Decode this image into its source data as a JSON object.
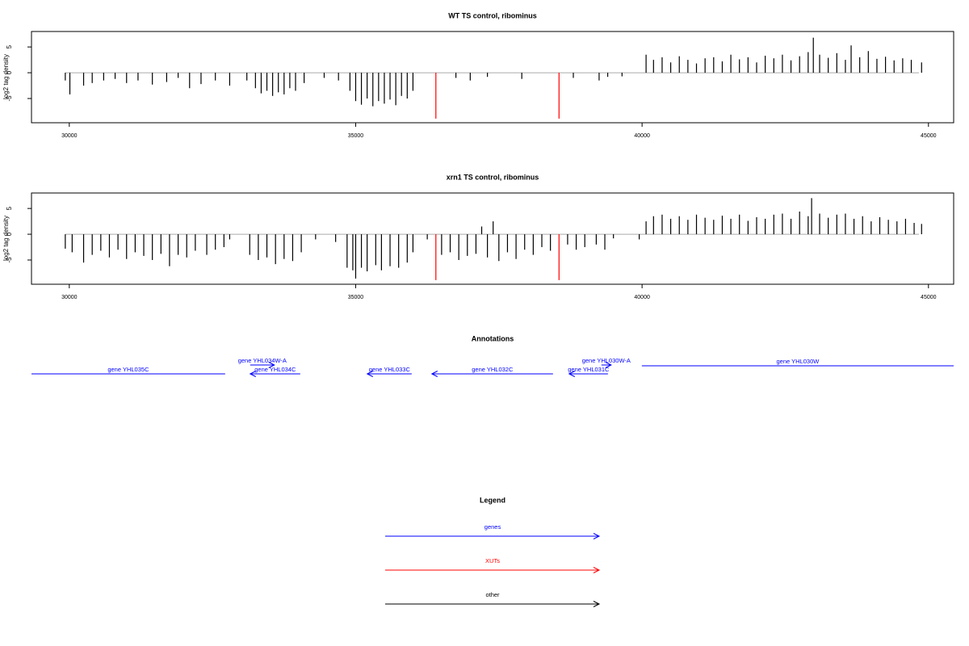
{
  "chart_data": [
    {
      "type": "bar",
      "title": "WT TS control, ribominus",
      "y_label": "log2 tag density",
      "xlim": [
        29340,
        45440
      ],
      "ylim": [
        -9.7,
        8
      ],
      "xticks": [
        30000,
        35000,
        40000,
        45000
      ],
      "yticks": [
        -5,
        0,
        5
      ],
      "series": [
        {
          "color": "#000000",
          "x": [
            29930,
            30010,
            30250,
            30400,
            30600,
            30800,
            31000,
            31200,
            31450,
            31700,
            31900,
            32100,
            32300,
            32550,
            32800,
            33100,
            33250,
            33350,
            33450,
            33550,
            33650,
            33750,
            33850,
            33950,
            34100,
            34450,
            34700,
            34900,
            35000,
            35100,
            35200,
            35300,
            35400,
            35500,
            35600,
            35700,
            35800,
            35900,
            36000,
            36750,
            37000,
            37300,
            37900,
            38800,
            39250,
            39400,
            39650,
            40070,
            40200,
            40350,
            40500,
            40650,
            40800,
            40950,
            41100,
            41250,
            41400,
            41550,
            41700,
            41850,
            42000,
            42150,
            42300,
            42450,
            42600,
            42750,
            42900,
            42990,
            43100,
            43250,
            43400,
            43550,
            43650,
            43800,
            43950,
            44100,
            44250,
            44400,
            44550,
            44700,
            44880
          ],
          "values": [
            -1.5,
            -4.2,
            -2.5,
            -2.0,
            -1.5,
            -1.2,
            -2.0,
            -1.5,
            -2.3,
            -1.8,
            -1.0,
            -3.0,
            -2.2,
            -1.5,
            -2.5,
            -1.5,
            -3.0,
            -4.0,
            -3.5,
            -4.5,
            -3.8,
            -4.2,
            -3.0,
            -3.5,
            -2.0,
            -1.0,
            -1.5,
            -3.5,
            -5.5,
            -6.2,
            -5.0,
            -6.5,
            -5.5,
            -6.0,
            -5.2,
            -6.3,
            -4.5,
            -5.0,
            -3.5,
            -1.0,
            -1.5,
            -0.8,
            -1.2,
            -1.0,
            -1.5,
            -0.8,
            -0.7,
            3.5,
            2.5,
            3.0,
            2.0,
            3.2,
            2.5,
            1.8,
            2.8,
            3.0,
            2.2,
            3.5,
            2.6,
            3.0,
            2.0,
            3.3,
            2.8,
            3.5,
            2.4,
            3.2,
            4.0,
            6.8,
            3.5,
            2.9,
            3.8,
            2.5,
            5.3,
            3.0,
            4.2,
            2.7,
            3.1,
            2.4,
            2.8,
            2.5,
            2.0
          ]
        },
        {
          "color": "#ff0000",
          "x": [
            36400,
            38550
          ],
          "values": [
            -8.9,
            -8.9
          ]
        }
      ]
    },
    {
      "type": "bar",
      "title": "xrn1 TS control, ribominus",
      "y_label": "log2 tag density",
      "xlim": [
        29340,
        45440
      ],
      "ylim": [
        -9.7,
        8
      ],
      "xticks": [
        30000,
        35000,
        40000,
        45000
      ],
      "yticks": [
        -5,
        0,
        5
      ],
      "series": [
        {
          "color": "#000000",
          "x": [
            29930,
            30050,
            30250,
            30400,
            30550,
            30700,
            30850,
            31000,
            31150,
            31300,
            31450,
            31600,
            31750,
            31900,
            32050,
            32200,
            32400,
            32550,
            32700,
            32800,
            33150,
            33300,
            33450,
            33600,
            33750,
            33900,
            34050,
            34300,
            34650,
            34850,
            34950,
            35000,
            35100,
            35200,
            35350,
            35450,
            35600,
            35750,
            35900,
            36000,
            36250,
            36500,
            36650,
            36800,
            36950,
            37100,
            37200,
            37300,
            37400,
            37500,
            37650,
            37800,
            37950,
            38100,
            38250,
            38400,
            38700,
            38850,
            39000,
            39200,
            39350,
            39500,
            39950,
            40070,
            40200,
            40350,
            40500,
            40650,
            40800,
            40950,
            41100,
            41250,
            41400,
            41550,
            41700,
            41850,
            42000,
            42150,
            42300,
            42450,
            42600,
            42750,
            42900,
            42960,
            43100,
            43250,
            43400,
            43550,
            43700,
            43850,
            44000,
            44150,
            44300,
            44450,
            44600,
            44750,
            44880
          ],
          "values": [
            -2.8,
            -3.5,
            -5.5,
            -4.0,
            -3.2,
            -4.5,
            -3.0,
            -4.8,
            -3.5,
            -4.2,
            -5.0,
            -3.8,
            -6.2,
            -4.0,
            -4.5,
            -3.2,
            -4.0,
            -3.0,
            -2.5,
            -1.0,
            -4.0,
            -5.0,
            -4.5,
            -5.8,
            -4.8,
            -5.2,
            -3.5,
            -1.0,
            -1.5,
            -6.5,
            -7.0,
            -8.6,
            -6.5,
            -7.2,
            -6.0,
            -7.0,
            -6.2,
            -6.5,
            -5.5,
            -3.5,
            -1.0,
            -4.0,
            -3.5,
            -5.0,
            -4.2,
            -3.8,
            1.5,
            -4.5,
            2.5,
            -5.2,
            -3.5,
            -4.8,
            -3.0,
            -4.0,
            -2.5,
            -3.2,
            -2.0,
            -3.0,
            -2.5,
            -2.0,
            -3.0,
            -0.8,
            -1.0,
            2.5,
            3.5,
            3.8,
            3.0,
            3.5,
            2.8,
            3.8,
            3.2,
            2.8,
            3.6,
            3.0,
            3.8,
            2.6,
            3.3,
            3.0,
            3.8,
            4.0,
            3.0,
            4.4,
            3.5,
            7.0,
            4.0,
            3.2,
            3.8,
            4.0,
            3.0,
            3.5,
            2.5,
            3.3,
            2.8,
            2.5,
            3.0,
            2.2,
            2.0
          ]
        },
        {
          "color": "#ff0000",
          "x": [
            36400,
            38550
          ],
          "values": [
            -8.9,
            -8.9
          ]
        }
      ]
    }
  ],
  "annotations": {
    "title": "Annotations",
    "color": "#0000ff",
    "genes": [
      {
        "label": "gene YHL035C",
        "start": 29200,
        "end": 32721,
        "direction": "left"
      },
      {
        "label": "gene YHL034W-A",
        "start": 33158,
        "end": 33580,
        "direction": "right"
      },
      {
        "label": "gene YHL034C",
        "start": 33158,
        "end": 34032,
        "direction": "left"
      },
      {
        "label": "gene YHL033C",
        "start": 35202,
        "end": 35978,
        "direction": "left"
      },
      {
        "label": "gene YHL032C",
        "start": 36330,
        "end": 38445,
        "direction": "left"
      },
      {
        "label": "gene YHL031C",
        "start": 38727,
        "end": 39404,
        "direction": "left"
      },
      {
        "label": "gene YHL030W-A",
        "start": 39290,
        "end": 39460,
        "direction": "right"
      },
      {
        "label": "gene YHL030W",
        "start": 39996,
        "end": 46000,
        "direction": "right"
      }
    ]
  },
  "legend": {
    "title": "Legend",
    "items": [
      {
        "label": "genes",
        "color": "#0000ff"
      },
      {
        "label": "XUTs",
        "color": "#ff0000"
      },
      {
        "label": "other",
        "color": "#000000"
      }
    ]
  }
}
